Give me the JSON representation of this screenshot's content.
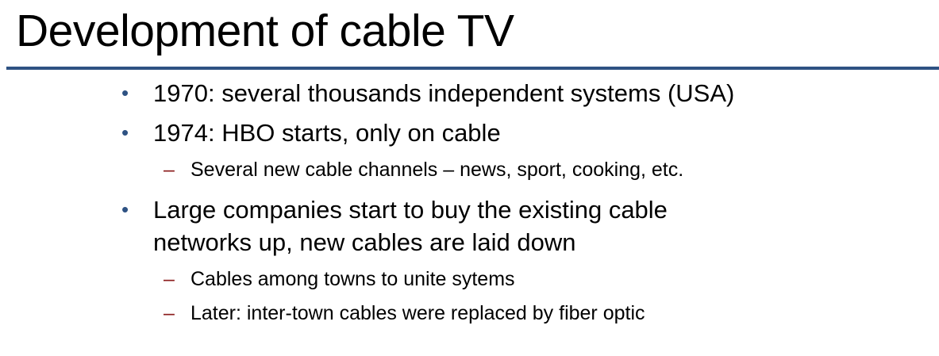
{
  "slide": {
    "title": "Development of cable TV",
    "colors": {
      "title_rule": "#2e5283",
      "level1_bullet": "#2e5283",
      "level2_dash": "#8b1c1c",
      "text": "#000000"
    },
    "bullets": [
      {
        "marker": "•",
        "text": "1970: several thousands independent systems (USA)"
      },
      {
        "marker": "•",
        "text": "1974: HBO starts, only on cable",
        "sub": [
          {
            "marker": "–",
            "text": "Several new cable channels – news, sport, cooking, etc."
          }
        ]
      },
      {
        "marker": "•",
        "lines": [
          "Large companies start to buy the existing cable",
          "networks up, new cables are laid down"
        ],
        "sub": [
          {
            "marker": "–",
            "text": "Cables among towns to unite sytems"
          },
          {
            "marker": "–",
            "text": "Later: inter-town cables were replaced by fiber optic"
          }
        ]
      }
    ]
  }
}
